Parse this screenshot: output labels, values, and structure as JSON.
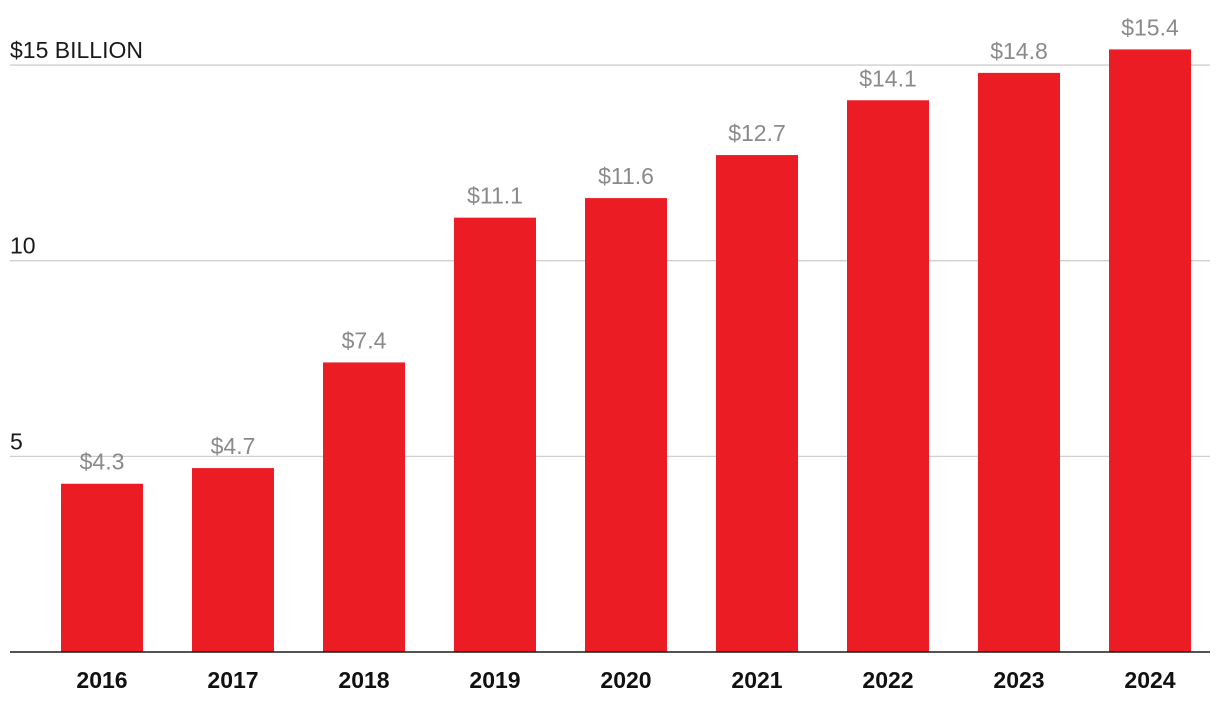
{
  "chart_data": {
    "type": "bar",
    "title": "",
    "xlabel": "",
    "ylabel": "",
    "categories": [
      "2016",
      "2017",
      "2018",
      "2019",
      "2020",
      "2021",
      "2022",
      "2023",
      "2024"
    ],
    "values": [
      4.3,
      4.7,
      7.4,
      11.1,
      11.6,
      12.7,
      14.1,
      14.8,
      15.4
    ],
    "data_labels": [
      "$4.3",
      "$4.7",
      "$7.4",
      "$11.1",
      "$11.6",
      "$12.7",
      "$14.1",
      "$14.8",
      "$15.4"
    ],
    "ylim": [
      0,
      15
    ],
    "yticks": [
      5,
      10,
      15
    ],
    "ytick_labels": [
      "5",
      "10",
      "$15 BILLION"
    ],
    "grid": true,
    "legend": "none",
    "colors": {
      "bar": "#ec1c24",
      "gridline": "#cfcfcf",
      "data_label": "#8a8a8a",
      "axis_text": "#111111"
    }
  }
}
